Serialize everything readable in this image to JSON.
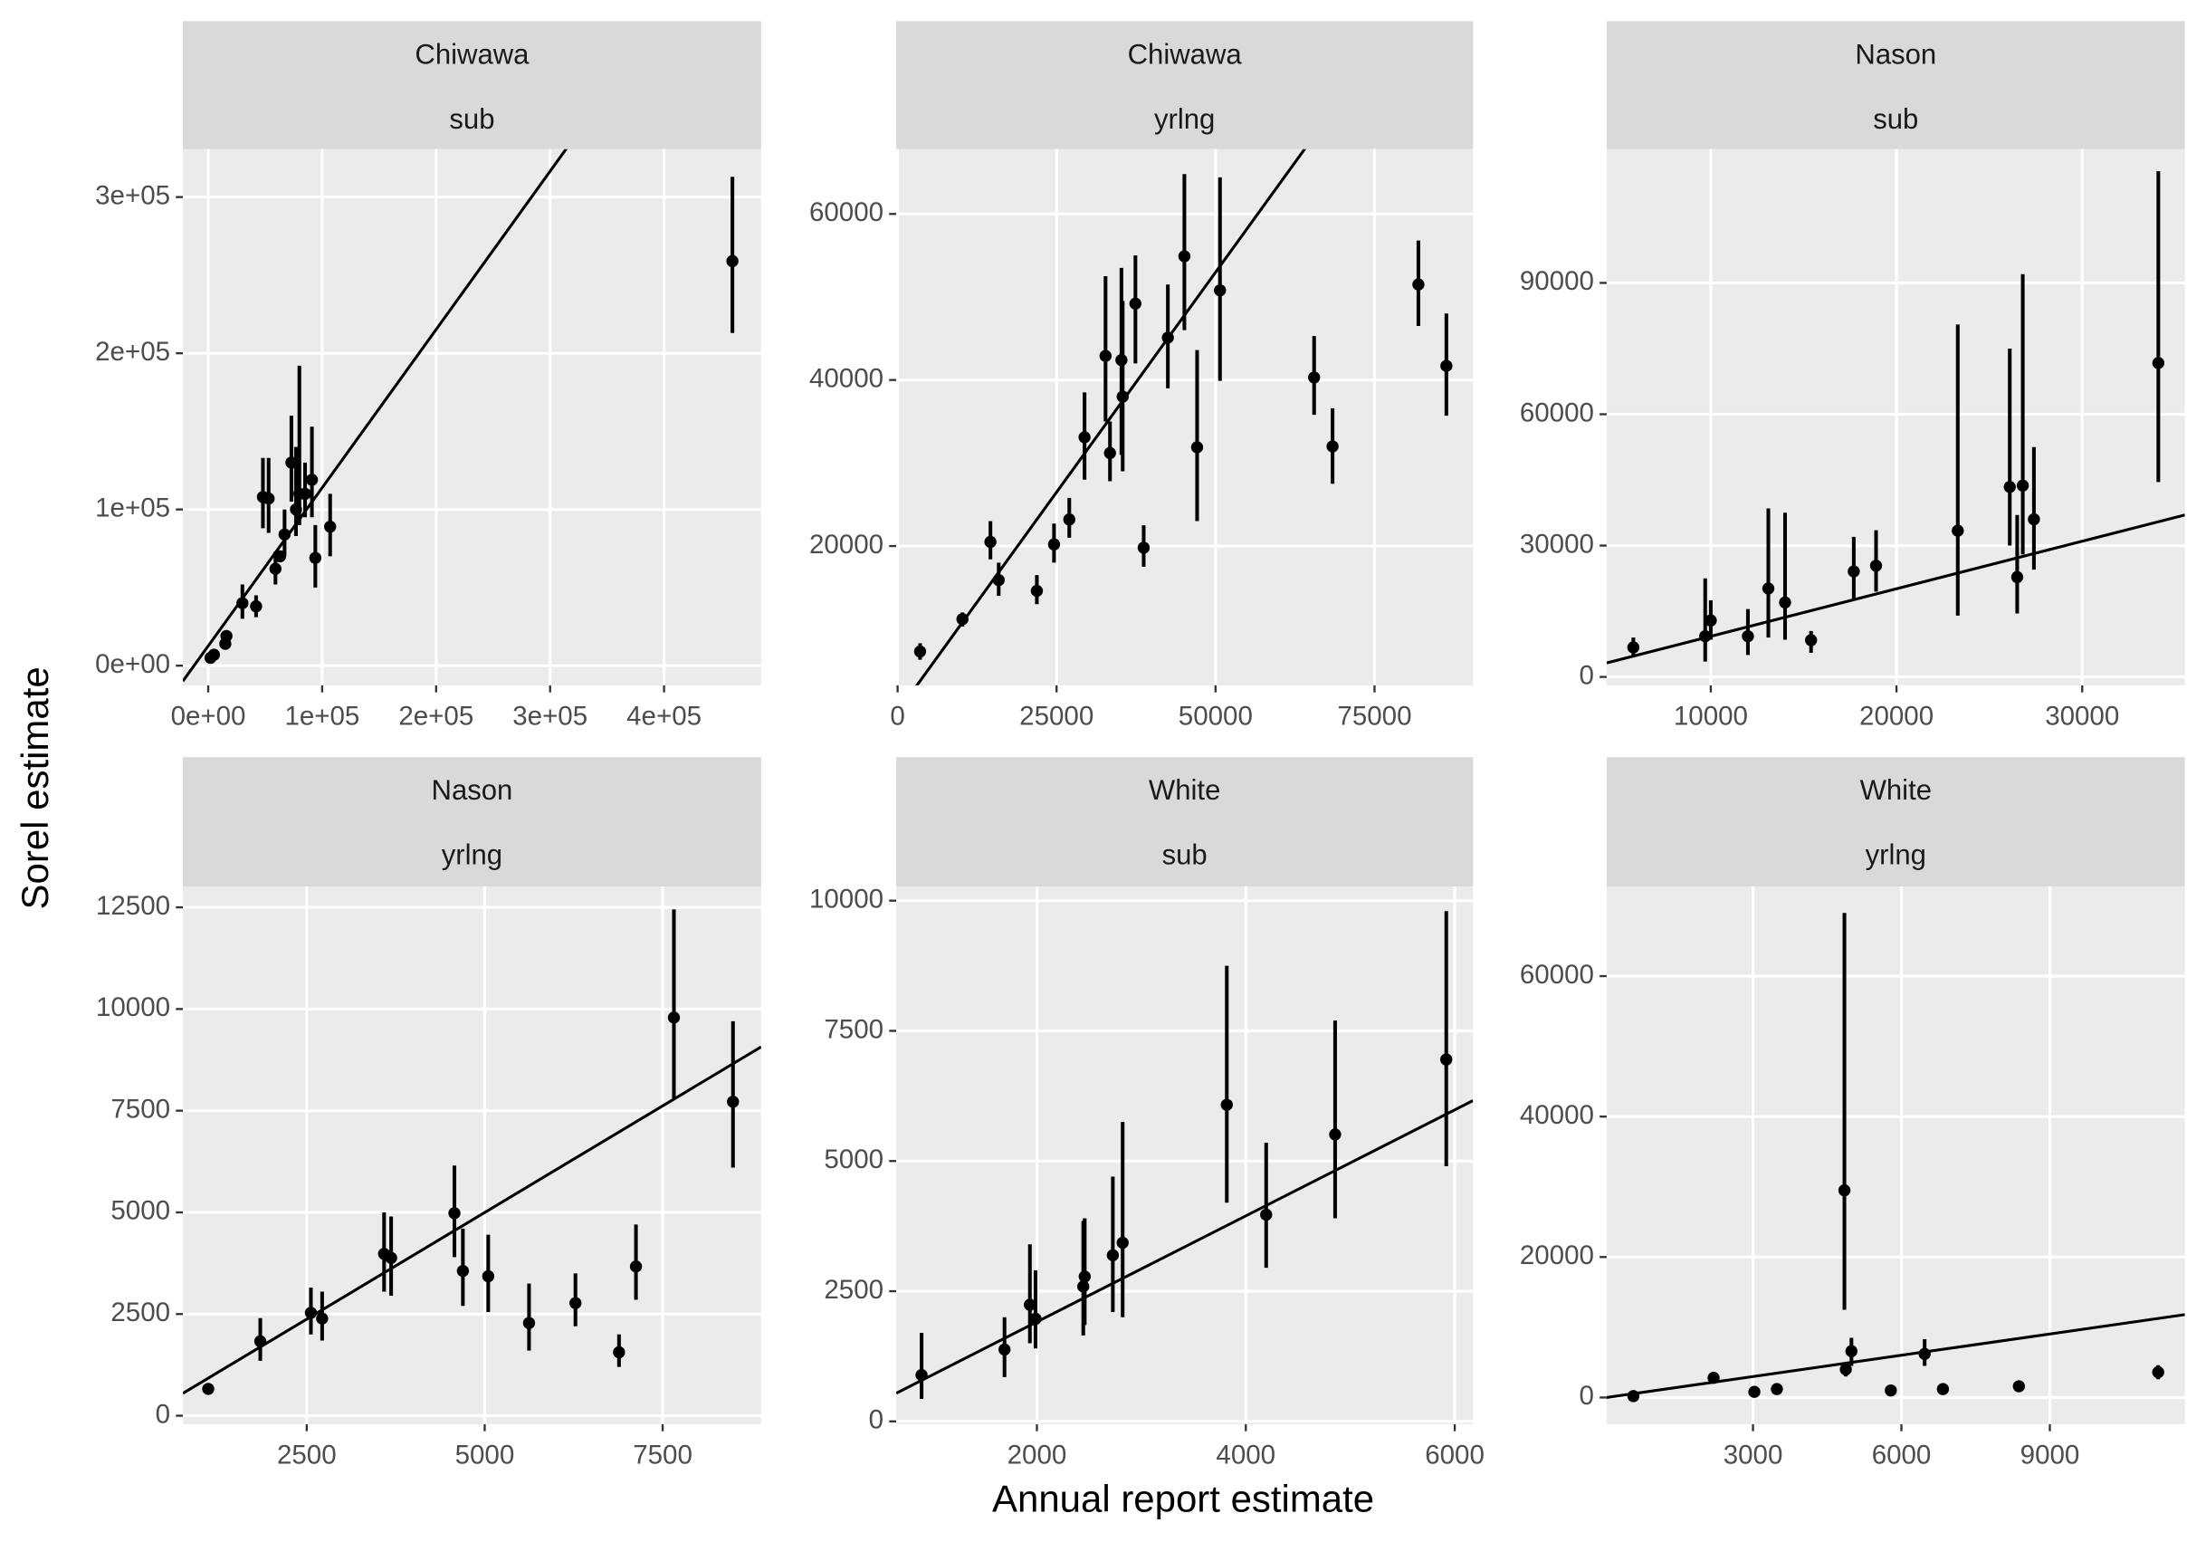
{
  "x_label": "Annual report estimate",
  "y_label": "Sorel estimate",
  "chart_data": [
    {
      "type": "scatter",
      "strip": [
        "Chiwawa",
        "sub"
      ],
      "color": "#000000",
      "grid": true,
      "xlim": [
        -22222,
        485185
      ],
      "ylim": [
        -12613,
        330630
      ],
      "xticks": [
        {
          "value": 0,
          "label": "0e+00"
        },
        {
          "value": 100000,
          "label": "1e+05"
        },
        {
          "value": 200000,
          "label": "2e+05"
        },
        {
          "value": 300000,
          "label": "3e+05"
        },
        {
          "value": 400000,
          "label": "4e+05"
        }
      ],
      "yticks": [
        {
          "value": 0,
          "label": "0e+00"
        },
        {
          "value": 100000,
          "label": "1e+05"
        },
        {
          "value": 200000,
          "label": "2e+05"
        },
        {
          "value": 300000,
          "label": "3e+05"
        }
      ],
      "x": [
        2000,
        5000,
        15000,
        16000,
        30000,
        42000,
        48000,
        53000,
        59000,
        63000,
        67000,
        73000,
        77000,
        80000,
        85000,
        91000,
        94000,
        107000,
        460000
      ],
      "values": [
        5000,
        7000,
        14000,
        19000,
        40000,
        38000,
        108000,
        107000,
        62000,
        70000,
        84000,
        130000,
        100000,
        110000,
        110000,
        119000,
        69000,
        89000,
        259000
      ],
      "lower": [
        3000,
        null,
        null,
        null,
        30000,
        31000,
        88000,
        85000,
        52000,
        null,
        70000,
        105000,
        83000,
        90000,
        95000,
        95000,
        50000,
        70000,
        213000
      ],
      "upper": [
        7000,
        null,
        null,
        null,
        52000,
        45000,
        133000,
        133000,
        73000,
        null,
        100000,
        160000,
        140000,
        192000,
        130000,
        153000,
        90000,
        110000,
        313000
      ],
      "fit": {
        "x": [
          -22222,
          314800
        ],
        "y": [
          -9900,
          331500
        ]
      }
    },
    {
      "type": "scatter",
      "strip": [
        "Chiwawa",
        "yrlng"
      ],
      "color": "#000000",
      "grid": true,
      "xlim": [
        -221,
        90487
      ],
      "ylim": [
        3220,
        67797
      ],
      "xticks": [
        0,
        25000,
        50000,
        75000
      ],
      "yticks": [
        20000,
        40000,
        60000
      ],
      "x": [
        3540,
        10200,
        14600,
        15900,
        21900,
        24600,
        27000,
        29400,
        32700,
        33400,
        35200,
        35400,
        37400,
        38700,
        42500,
        45100,
        47100,
        50700,
        65500,
        68400,
        81900,
        86300
      ],
      "values": [
        7300,
        11200,
        20500,
        15900,
        14600,
        20200,
        23200,
        33100,
        42900,
        31200,
        42400,
        38000,
        49200,
        19800,
        45100,
        54900,
        31900,
        50800,
        40300,
        32000,
        51500,
        41700
      ],
      "lower": [
        6300,
        10300,
        18400,
        14000,
        13000,
        18000,
        21000,
        28000,
        35000,
        27800,
        31000,
        29000,
        42000,
        17500,
        39000,
        46000,
        23000,
        39900,
        35800,
        27500,
        46500,
        35700
      ],
      "upper": [
        8300,
        12000,
        23000,
        18000,
        16500,
        22700,
        25800,
        38500,
        52500,
        35000,
        53500,
        49500,
        55000,
        22500,
        51500,
        64800,
        43600,
        64400,
        45300,
        36600,
        56800,
        48000
      ],
      "fit": {
        "x": [
          2876,
          64160
        ],
        "y": [
          3050,
          67970
        ]
      }
    },
    {
      "type": "scatter",
      "strip": [
        "Nason",
        "sub"
      ],
      "color": "#000000",
      "grid": true,
      "xlim": [
        4394,
        35530
      ],
      "ylim": [
        -1929,
        120540
      ],
      "xticks": [
        10000,
        20000,
        30000
      ],
      "yticks": [
        0,
        30000,
        60000,
        90000
      ],
      "x": [
        5830,
        9700,
        10000,
        12000,
        13100,
        14000,
        15400,
        17700,
        18900,
        23300,
        26100,
        26500,
        26800,
        27400,
        34100
      ],
      "values": [
        6750,
        9300,
        12900,
        9300,
        20200,
        17000,
        8400,
        24100,
        25400,
        33400,
        43400,
        22800,
        43700,
        36000,
        71700
      ],
      "lower": [
        4500,
        3500,
        8500,
        5000,
        9000,
        8500,
        5500,
        17500,
        19500,
        14000,
        30000,
        14500,
        28000,
        24500,
        44500
      ],
      "upper": [
        9000,
        22500,
        17500,
        15500,
        38500,
        37500,
        10500,
        32000,
        33500,
        80500,
        75000,
        37000,
        92000,
        52500,
        115500
      ],
      "fit": {
        "x": [
          4394,
          35530
        ],
        "y": [
          3200,
          37000
        ]
      }
    },
    {
      "type": "scatter",
      "strip": [
        "Nason",
        "yrlng"
      ],
      "color": "#000000",
      "grid": true,
      "xlim": [
        761,
        8883
      ],
      "ylim": [
        -208,
        13010
      ],
      "xticks": [
        2500,
        5000,
        7500
      ],
      "yticks": [
        0,
        2500,
        5000,
        7500,
        10000,
        12500
      ],
      "x": [
        1117,
        1848,
        2559,
        2717,
        3587,
        3686,
        4575,
        4694,
        5050,
        5623,
        6275,
        6887,
        7125,
        7658,
        8488
      ],
      "values": [
        660,
        1830,
        2530,
        2390,
        3980,
        3880,
        4980,
        3560,
        3430,
        2280,
        2770,
        1560,
        3670,
        9790,
        7720
      ],
      "lower": [
        550,
        1350,
        2000,
        1850,
        3050,
        2950,
        3900,
        2700,
        2550,
        1600,
        2200,
        1200,
        2850,
        7800,
        6100
      ],
      "upper": [
        780,
        2400,
        3150,
        3050,
        5000,
        4900,
        6150,
        4600,
        4450,
        3250,
        3500,
        2000,
        4700,
        12450,
        9700
      ],
      "fit": {
        "x": [
          761,
          8883
        ],
        "y": [
          550,
          9070
        ]
      }
    },
    {
      "type": "scatter",
      "strip": [
        "White",
        "sub"
      ],
      "color": "#000000",
      "grid": true,
      "xlim": [
        653,
        6175
      ],
      "ylim": [
        -54,
        10270
      ],
      "xticks": [
        2000,
        4000,
        6000
      ],
      "yticks": [
        0,
        2500,
        5000,
        7500,
        10000
      ],
      "x": [
        896,
        1690,
        1933,
        1987,
        2444,
        2458,
        2727,
        2821,
        3818,
        4195,
        4855,
        5919
      ],
      "values": [
        890,
        1380,
        2240,
        1970,
        2590,
        2780,
        3190,
        3430,
        6080,
        3970,
        5510,
        6950
      ],
      "lower": [
        430,
        850,
        1500,
        1400,
        1650,
        1850,
        2100,
        2000,
        4200,
        2950,
        3900,
        4900
      ],
      "upper": [
        1700,
        2000,
        3400,
        2900,
        3850,
        3900,
        4700,
        5750,
        8750,
        5350,
        7700,
        9800
      ],
      "fit": {
        "x": [
          653,
          6175
        ],
        "y": [
          540,
          6160
        ]
      }
    },
    {
      "type": "scatter",
      "strip": [
        "White",
        "yrlng"
      ],
      "color": "#000000",
      "grid": true,
      "xlim": [
        43,
        11729
      ],
      "ylim": [
        -3800,
        72745
      ],
      "xticks": [
        3000,
        6000,
        9000
      ],
      "yticks": [
        0,
        20000,
        40000,
        60000
      ],
      "x": [
        583,
        2204,
        3028,
        3483,
        4848,
        4876,
        4990,
        5786,
        6469,
        6839,
        8374,
        11189
      ],
      "values": [
        200,
        2800,
        800,
        1200,
        29500,
        4000,
        6600,
        1000,
        6200,
        1200,
        1600,
        3600
      ],
      "lower": [
        100,
        2000,
        null,
        null,
        12500,
        3000,
        4500,
        null,
        4500,
        null,
        null,
        2600
      ],
      "upper": [
        400,
        3500,
        null,
        null,
        69000,
        5000,
        8500,
        null,
        8300,
        null,
        null,
        4600
      ],
      "fit": {
        "x": [
          43,
          11729
        ],
        "y": [
          0,
          11800
        ]
      }
    }
  ]
}
